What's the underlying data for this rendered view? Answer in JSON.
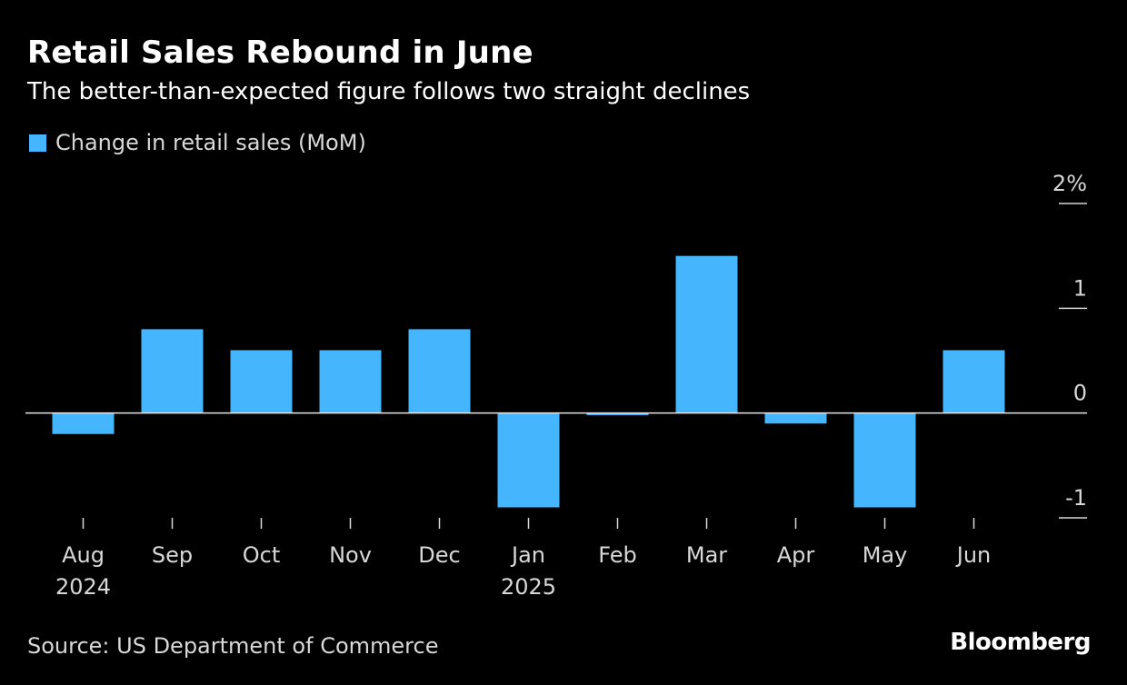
{
  "source": "Source: US Department of Commerce",
  "brand": "Bloomberg",
  "chart_data": {
    "type": "bar",
    "title": "Retail Sales Rebound in June",
    "subtitle": "The better-than-expected figure follows two straight declines",
    "legend": "Change in retail sales (MoM)",
    "legend_placement": "top-left",
    "categories": [
      "Aug",
      "Sep",
      "Oct",
      "Nov",
      "Dec",
      "Jan",
      "Feb",
      "Mar",
      "Apr",
      "May",
      "Jun"
    ],
    "year_labels": [
      "2024",
      "",
      "",
      "",
      "",
      "2025",
      "",
      "",
      "",
      "",
      ""
    ],
    "series": [
      {
        "name": "Change in retail sales (MoM)",
        "values": [
          -0.2,
          0.8,
          0.6,
          0.6,
          0.8,
          -0.9,
          -0.02,
          1.5,
          -0.1,
          -0.9,
          0.6
        ]
      }
    ],
    "ylim": [
      -1,
      2
    ],
    "yticks": [
      -1,
      0,
      1,
      2
    ],
    "ytick_labels": [
      "-1",
      "0",
      "1",
      "2%"
    ],
    "ylabel": "",
    "xlabel": "",
    "grid": false,
    "colors": {
      "bar": "#45b6fe",
      "zero_line": "#e6e6e6",
      "tick": "#d8d8d8",
      "text": "#ffffff",
      "muted_text": "#d8d8d8",
      "background": "#000000"
    }
  }
}
